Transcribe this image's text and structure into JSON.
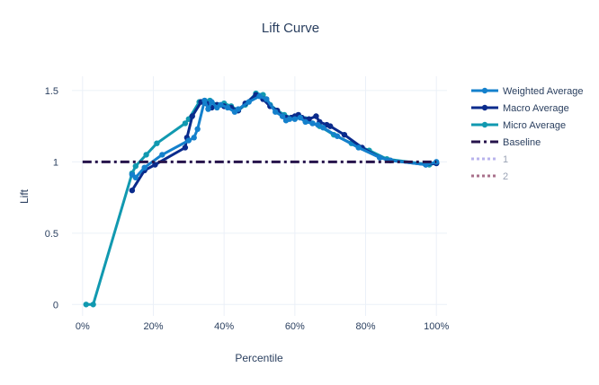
{
  "chart_data": {
    "type": "line",
    "title": "Lift Curve",
    "xlabel": "Percentile",
    "ylabel": "Lift",
    "xlim": [
      -0.03,
      1.03
    ],
    "ylim": [
      -0.08,
      1.6
    ],
    "grid": true,
    "legend_position": "right",
    "x_ticks": [
      0,
      0.2,
      0.4,
      0.6,
      0.8,
      1.0
    ],
    "x_tick_labels": [
      "0%",
      "20%",
      "40%",
      "60%",
      "80%",
      "100%"
    ],
    "y_ticks": [
      0,
      0.5,
      1,
      1.5
    ],
    "y_tick_labels": [
      "0",
      "0.5",
      "1",
      "1.5"
    ],
    "series": [
      {
        "name": "Micro Average",
        "color": "#1199b0",
        "style": "solid",
        "markers": true,
        "x": [
          0.01,
          0.03,
          0.14,
          0.15,
          0.18,
          0.21,
          0.29,
          0.3,
          0.33,
          0.345,
          0.36,
          0.38,
          0.4,
          0.42,
          0.44,
          0.46,
          0.49,
          0.51,
          0.53,
          0.55,
          0.57,
          0.59,
          0.61,
          0.63,
          0.65,
          0.67,
          0.71,
          0.76,
          0.81,
          0.86,
          0.98,
          1.0
        ],
        "y": [
          0,
          0,
          0.92,
          0.97,
          1.05,
          1.13,
          1.27,
          1.3,
          1.42,
          1.43,
          1.43,
          1.4,
          1.41,
          1.39,
          1.36,
          1.4,
          1.48,
          1.47,
          1.4,
          1.36,
          1.33,
          1.31,
          1.32,
          1.3,
          1.27,
          1.25,
          1.19,
          1.13,
          1.08,
          1.02,
          0.98,
          0.99
        ]
      },
      {
        "name": "Macro Average",
        "color": "#0a2b8c",
        "style": "solid",
        "markers": true,
        "x": [
          0.14,
          0.175,
          0.205,
          0.29,
          0.295,
          0.31,
          0.335,
          0.35,
          0.365,
          0.38,
          0.4,
          0.42,
          0.43,
          0.44,
          0.46,
          0.49,
          0.51,
          0.53,
          0.55,
          0.565,
          0.575,
          0.59,
          0.6,
          0.61,
          0.62,
          0.64,
          0.66,
          0.67,
          0.69,
          0.7,
          0.74,
          0.79,
          0.84,
          0.87,
          0.97,
          1.0
        ],
        "y": [
          0.8,
          0.94,
          0.98,
          1.1,
          1.17,
          1.32,
          1.42,
          1.41,
          1.38,
          1.4,
          1.39,
          1.38,
          1.36,
          1.36,
          1.41,
          1.47,
          1.44,
          1.39,
          1.36,
          1.32,
          1.31,
          1.31,
          1.32,
          1.33,
          1.31,
          1.3,
          1.32,
          1.28,
          1.26,
          1.25,
          1.19,
          1.1,
          1.03,
          1.01,
          0.98,
          0.99
        ]
      },
      {
        "name": "Weighted Average",
        "color": "#1480cc",
        "style": "solid",
        "markers": true,
        "x": [
          0.14,
          0.15,
          0.175,
          0.225,
          0.3,
          0.315,
          0.325,
          0.345,
          0.355,
          0.365,
          0.38,
          0.39,
          0.41,
          0.43,
          0.44,
          0.47,
          0.5,
          0.52,
          0.545,
          0.565,
          0.575,
          0.585,
          0.6,
          0.615,
          0.63,
          0.65,
          0.665,
          0.68,
          0.72,
          0.78,
          0.84,
          0.87,
          0.97,
          1.0
        ],
        "y": [
          0.91,
          0.89,
          0.96,
          1.05,
          1.15,
          1.17,
          1.23,
          1.43,
          1.37,
          1.42,
          1.38,
          1.4,
          1.38,
          1.35,
          1.37,
          1.42,
          1.46,
          1.44,
          1.35,
          1.32,
          1.29,
          1.3,
          1.3,
          1.31,
          1.28,
          1.27,
          1.26,
          1.24,
          1.18,
          1.1,
          1.03,
          1.01,
          0.98,
          1.0
        ]
      },
      {
        "name": "Baseline",
        "color": "#26134b",
        "style": "dashdot",
        "markers": false,
        "x": [
          0,
          1
        ],
        "y": [
          1,
          1
        ]
      },
      {
        "name": "1",
        "color": "#b8b3ec",
        "style": "dot",
        "markers": false,
        "x": [],
        "y": []
      },
      {
        "name": "2",
        "color": "#a9708b",
        "style": "dot",
        "markers": false,
        "x": [],
        "y": []
      }
    ],
    "legend_order": [
      "Weighted Average",
      "Macro Average",
      "Micro Average",
      "Baseline",
      "1",
      "2"
    ]
  }
}
